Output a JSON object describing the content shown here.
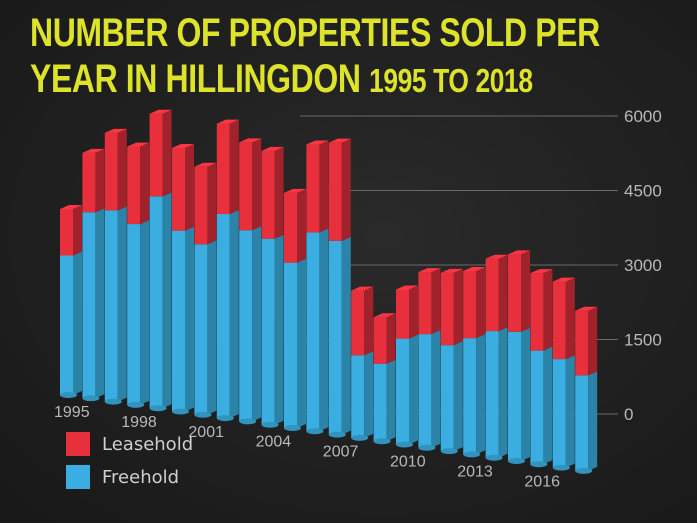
{
  "title": {
    "line1": "NUMBER OF PROPERTIES SOLD PER",
    "line2_main": "YEAR IN HILLINGDON",
    "line2_sub": "1995 TO 2018"
  },
  "colors": {
    "leasehold": "#e8303d",
    "freehold": "#3aaee0",
    "title": "#dde22a"
  },
  "chart_data": {
    "type": "bar",
    "stacked": true,
    "title": "NUMBER OF PROPERTIES SOLD PER YEAR IN HILLINGDON 1995 TO 2018",
    "categories": [
      "1995",
      "1996",
      "1997",
      "1998",
      "1999",
      "2000",
      "2001",
      "2002",
      "2003",
      "2004",
      "2005",
      "2006",
      "2007",
      "2008",
      "2009",
      "2010",
      "2011",
      "2012",
      "2013",
      "2014",
      "2015",
      "2016",
      "2017",
      "2018"
    ],
    "x_tick_labels": [
      "1995",
      "1998",
      "2001",
      "2004",
      "2007",
      "2010",
      "2013",
      "2016"
    ],
    "y_ticks": [
      "0",
      "1500",
      "3000",
      "4500",
      "6000"
    ],
    "ylim": [
      0,
      6000
    ],
    "series": [
      {
        "name": "Freehold",
        "values": [
          2700,
          3600,
          3700,
          3500,
          4100,
          3500,
          3300,
          3950,
          3700,
          3600,
          3200,
          3850,
          3750,
          1600,
          1500,
          2050,
          2200,
          2050,
          2250,
          2450,
          2500,
          2200,
          2100,
          1850
        ]
      },
      {
        "name": "Leasehold",
        "values": [
          900,
          1150,
          1500,
          1500,
          1600,
          1600,
          1500,
          1750,
          1700,
          1700,
          1350,
          1700,
          1900,
          1250,
          900,
          950,
          1200,
          1400,
          1300,
          1400,
          1500,
          1500,
          1500,
          1250
        ]
      }
    ],
    "legend": [
      {
        "name": "Leasehold",
        "color": "#e8303d"
      },
      {
        "name": "Freehold",
        "color": "#3aaee0"
      }
    ],
    "legend_position": "bottom-left",
    "xlabel": "",
    "ylabel": ""
  }
}
